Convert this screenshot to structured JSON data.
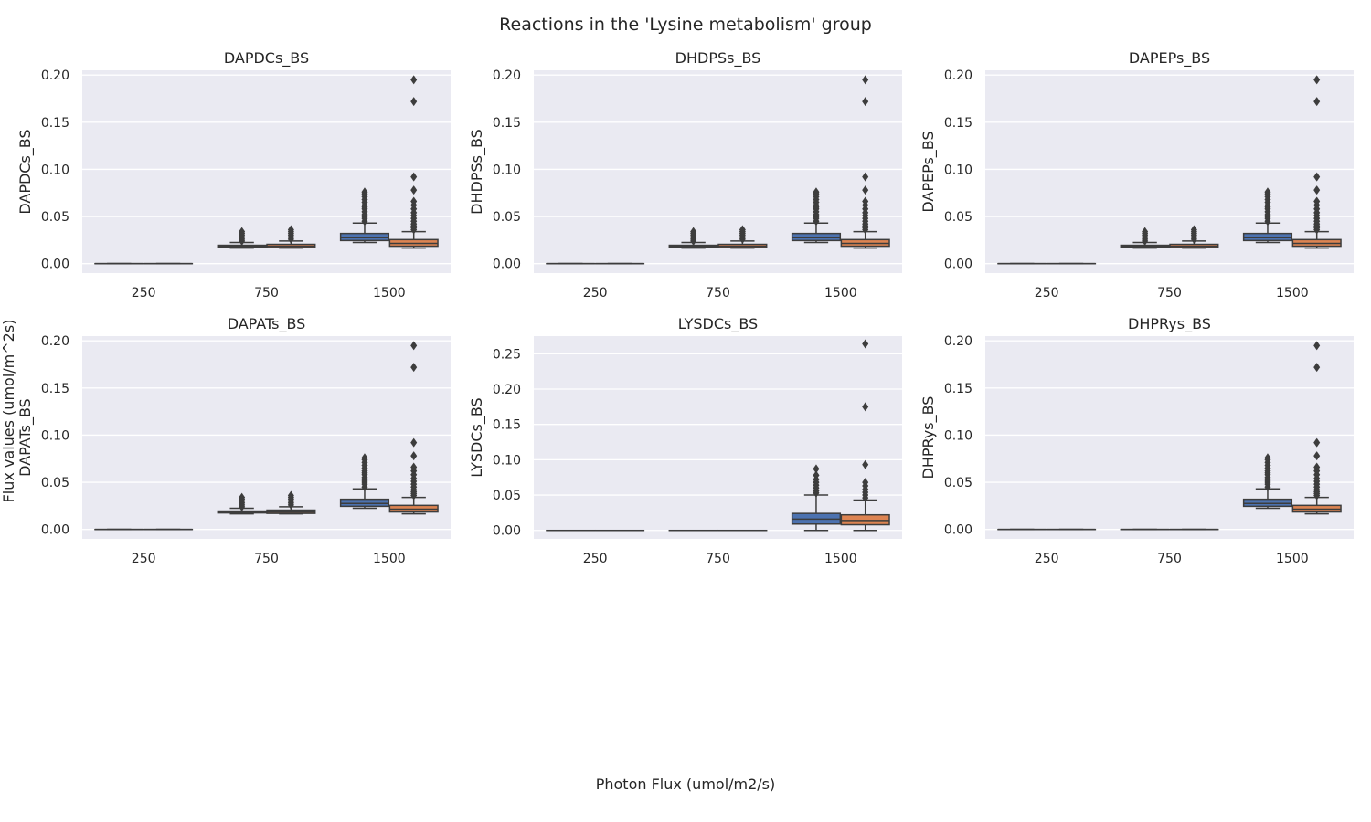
{
  "figure": {
    "suptitle": "Reactions in the 'Lysine metabolism' group",
    "supxlabel": "Photon Flux (umol/m2/s)",
    "supylabel": "Flux values (umol/m^2s)"
  },
  "colors": {
    "background": "#eaeaf2",
    "grid": "#ffffff",
    "box_edge": "#3d3d3d",
    "series_a": "#4c72b0",
    "series_b": "#dd8452"
  },
  "chart_data": [
    {
      "type": "box",
      "title": "DAPDCs_BS",
      "ylabel": "DAPDCs_BS",
      "categories": [
        "250",
        "750",
        "1500"
      ],
      "ylim": [
        -0.01,
        0.205
      ],
      "yticks": [
        0.0,
        0.05,
        0.1,
        0.15,
        0.2
      ],
      "ytick_labels": [
        "0.00",
        "0.05",
        "0.10",
        "0.15",
        "0.20"
      ],
      "grid": true,
      "series": [
        {
          "color": "#4c72b0",
          "boxes": [
            {
              "q1": 0.0,
              "median": 0.0,
              "q3": 0.0,
              "whislo": 0.0,
              "whishi": 0.0,
              "fliers": []
            },
            {
              "q1": 0.0175,
              "median": 0.0183,
              "q3": 0.0195,
              "whislo": 0.0165,
              "whishi": 0.0225,
              "fliers": [
                0.024,
                0.026,
                0.028,
                0.03,
                0.032,
                0.034
              ]
            },
            {
              "q1": 0.0245,
              "median": 0.0275,
              "q3": 0.032,
              "whislo": 0.0225,
              "whishi": 0.043,
              "fliers": [
                0.045,
                0.048,
                0.05,
                0.052,
                0.055,
                0.058,
                0.06,
                0.062,
                0.065,
                0.068,
                0.071,
                0.074,
                0.076
              ]
            }
          ]
        },
        {
          "color": "#dd8452",
          "boxes": [
            {
              "q1": 0.0,
              "median": 0.0,
              "q3": 0.0,
              "whislo": 0.0,
              "whishi": 0.0,
              "fliers": []
            },
            {
              "q1": 0.017,
              "median": 0.0185,
              "q3": 0.0205,
              "whislo": 0.0165,
              "whishi": 0.024,
              "fliers": [
                0.026,
                0.028,
                0.03,
                0.032,
                0.034,
                0.036
              ]
            },
            {
              "q1": 0.0185,
              "median": 0.0215,
              "q3": 0.0255,
              "whislo": 0.0165,
              "whishi": 0.034,
              "fliers": [
                0.036,
                0.038,
                0.04,
                0.042,
                0.045,
                0.048,
                0.051,
                0.054,
                0.058,
                0.062,
                0.066,
                0.078,
                0.092,
                0.172,
                0.195
              ]
            }
          ]
        }
      ]
    },
    {
      "type": "box",
      "title": "DHDPSs_BS",
      "ylabel": "DHDPSs_BS",
      "categories": [
        "250",
        "750",
        "1500"
      ],
      "ylim": [
        -0.01,
        0.205
      ],
      "yticks": [
        0.0,
        0.05,
        0.1,
        0.15,
        0.2
      ],
      "ytick_labels": [
        "0.00",
        "0.05",
        "0.10",
        "0.15",
        "0.20"
      ],
      "grid": true,
      "series": [
        {
          "color": "#4c72b0",
          "boxes": [
            {
              "q1": 0.0,
              "median": 0.0,
              "q3": 0.0,
              "whislo": 0.0,
              "whishi": 0.0,
              "fliers": []
            },
            {
              "q1": 0.0175,
              "median": 0.0183,
              "q3": 0.0195,
              "whislo": 0.0165,
              "whishi": 0.0225,
              "fliers": [
                0.024,
                0.026,
                0.028,
                0.03,
                0.032,
                0.034
              ]
            },
            {
              "q1": 0.0245,
              "median": 0.0275,
              "q3": 0.032,
              "whislo": 0.0225,
              "whishi": 0.043,
              "fliers": [
                0.045,
                0.048,
                0.05,
                0.052,
                0.055,
                0.058,
                0.06,
                0.062,
                0.065,
                0.068,
                0.071,
                0.074,
                0.076
              ]
            }
          ]
        },
        {
          "color": "#dd8452",
          "boxes": [
            {
              "q1": 0.0,
              "median": 0.0,
              "q3": 0.0,
              "whislo": 0.0,
              "whishi": 0.0,
              "fliers": []
            },
            {
              "q1": 0.017,
              "median": 0.0185,
              "q3": 0.0205,
              "whislo": 0.0165,
              "whishi": 0.024,
              "fliers": [
                0.026,
                0.028,
                0.03,
                0.032,
                0.034,
                0.036
              ]
            },
            {
              "q1": 0.0185,
              "median": 0.0215,
              "q3": 0.0255,
              "whislo": 0.0165,
              "whishi": 0.034,
              "fliers": [
                0.036,
                0.038,
                0.04,
                0.042,
                0.045,
                0.048,
                0.051,
                0.054,
                0.058,
                0.062,
                0.066,
                0.078,
                0.092,
                0.172,
                0.195
              ]
            }
          ]
        }
      ]
    },
    {
      "type": "box",
      "title": "DAPEPs_BS",
      "ylabel": "DAPEPs_BS",
      "categories": [
        "250",
        "750",
        "1500"
      ],
      "ylim": [
        -0.01,
        0.205
      ],
      "yticks": [
        0.0,
        0.05,
        0.1,
        0.15,
        0.2
      ],
      "ytick_labels": [
        "0.00",
        "0.05",
        "0.10",
        "0.15",
        "0.20"
      ],
      "grid": true,
      "series": [
        {
          "color": "#4c72b0",
          "boxes": [
            {
              "q1": 0.0,
              "median": 0.0,
              "q3": 0.0,
              "whislo": 0.0,
              "whishi": 0.0,
              "fliers": []
            },
            {
              "q1": 0.0175,
              "median": 0.0183,
              "q3": 0.0195,
              "whislo": 0.0165,
              "whishi": 0.0225,
              "fliers": [
                0.024,
                0.026,
                0.028,
                0.03,
                0.032,
                0.034
              ]
            },
            {
              "q1": 0.0245,
              "median": 0.0275,
              "q3": 0.032,
              "whislo": 0.0225,
              "whishi": 0.043,
              "fliers": [
                0.045,
                0.048,
                0.05,
                0.052,
                0.055,
                0.058,
                0.06,
                0.062,
                0.065,
                0.068,
                0.071,
                0.074,
                0.076
              ]
            }
          ]
        },
        {
          "color": "#dd8452",
          "boxes": [
            {
              "q1": 0.0,
              "median": 0.0,
              "q3": 0.0,
              "whislo": 0.0,
              "whishi": 0.0,
              "fliers": []
            },
            {
              "q1": 0.017,
              "median": 0.0185,
              "q3": 0.0205,
              "whislo": 0.0165,
              "whishi": 0.024,
              "fliers": [
                0.026,
                0.028,
                0.03,
                0.032,
                0.034,
                0.036
              ]
            },
            {
              "q1": 0.0185,
              "median": 0.0215,
              "q3": 0.0255,
              "whislo": 0.0165,
              "whishi": 0.034,
              "fliers": [
                0.036,
                0.038,
                0.04,
                0.042,
                0.045,
                0.048,
                0.051,
                0.054,
                0.058,
                0.062,
                0.066,
                0.078,
                0.092,
                0.172,
                0.195
              ]
            }
          ]
        }
      ]
    },
    {
      "type": "box",
      "title": "DAPATs_BS",
      "ylabel": "DAPATs_BS",
      "categories": [
        "250",
        "750",
        "1500"
      ],
      "ylim": [
        -0.01,
        0.205
      ],
      "yticks": [
        0.0,
        0.05,
        0.1,
        0.15,
        0.2
      ],
      "ytick_labels": [
        "0.00",
        "0.05",
        "0.10",
        "0.15",
        "0.20"
      ],
      "grid": true,
      "series": [
        {
          "color": "#4c72b0",
          "boxes": [
            {
              "q1": 0.0,
              "median": 0.0,
              "q3": 0.0,
              "whislo": 0.0,
              "whishi": 0.0,
              "fliers": []
            },
            {
              "q1": 0.0175,
              "median": 0.0183,
              "q3": 0.0195,
              "whislo": 0.0165,
              "whishi": 0.0225,
              "fliers": [
                0.024,
                0.026,
                0.028,
                0.03,
                0.032,
                0.034
              ]
            },
            {
              "q1": 0.0245,
              "median": 0.0275,
              "q3": 0.032,
              "whislo": 0.0225,
              "whishi": 0.043,
              "fliers": [
                0.045,
                0.048,
                0.05,
                0.052,
                0.055,
                0.058,
                0.06,
                0.062,
                0.065,
                0.068,
                0.071,
                0.074,
                0.076
              ]
            }
          ]
        },
        {
          "color": "#dd8452",
          "boxes": [
            {
              "q1": 0.0,
              "median": 0.0,
              "q3": 0.0,
              "whislo": 0.0,
              "whishi": 0.0,
              "fliers": []
            },
            {
              "q1": 0.017,
              "median": 0.0185,
              "q3": 0.0205,
              "whislo": 0.0165,
              "whishi": 0.024,
              "fliers": [
                0.026,
                0.028,
                0.03,
                0.032,
                0.034,
                0.036
              ]
            },
            {
              "q1": 0.0185,
              "median": 0.0215,
              "q3": 0.0255,
              "whislo": 0.0165,
              "whishi": 0.034,
              "fliers": [
                0.036,
                0.038,
                0.04,
                0.042,
                0.045,
                0.048,
                0.051,
                0.054,
                0.058,
                0.062,
                0.066,
                0.078,
                0.092,
                0.172,
                0.195
              ]
            }
          ]
        }
      ]
    },
    {
      "type": "box",
      "title": "LYSDCs_BS",
      "ylabel": "LYSDCs_BS",
      "categories": [
        "250",
        "750",
        "1500"
      ],
      "ylim": [
        -0.012,
        0.275
      ],
      "yticks": [
        0.0,
        0.05,
        0.1,
        0.15,
        0.2,
        0.25
      ],
      "ytick_labels": [
        "0.00",
        "0.05",
        "0.10",
        "0.15",
        "0.20",
        "0.25"
      ],
      "grid": true,
      "series": [
        {
          "color": "#4c72b0",
          "boxes": [
            {
              "q1": 0.0,
              "median": 0.0,
              "q3": 0.0,
              "whislo": 0.0,
              "whishi": 0.0,
              "fliers": []
            },
            {
              "q1": 0.0,
              "median": 0.0,
              "q3": 0.0,
              "whislo": 0.0,
              "whishi": 0.0,
              "fliers": []
            },
            {
              "q1": 0.009,
              "median": 0.016,
              "q3": 0.024,
              "whislo": 0.0,
              "whishi": 0.05,
              "fliers": [
                0.053,
                0.056,
                0.06,
                0.064,
                0.068,
                0.072,
                0.078,
                0.087
              ]
            }
          ]
        },
        {
          "color": "#dd8452",
          "boxes": [
            {
              "q1": 0.0,
              "median": 0.0,
              "q3": 0.0,
              "whislo": 0.0,
              "whishi": 0.0,
              "fliers": []
            },
            {
              "q1": 0.0,
              "median": 0.0,
              "q3": 0.0,
              "whislo": 0.0,
              "whishi": 0.0,
              "fliers": []
            },
            {
              "q1": 0.008,
              "median": 0.014,
              "q3": 0.022,
              "whislo": 0.0,
              "whishi": 0.043,
              "fliers": [
                0.046,
                0.05,
                0.054,
                0.058,
                0.063,
                0.068,
                0.093,
                0.175,
                0.264
              ]
            }
          ]
        }
      ]
    },
    {
      "type": "box",
      "title": "DHPRys_BS",
      "ylabel": "DHPRys_BS",
      "categories": [
        "250",
        "750",
        "1500"
      ],
      "ylim": [
        -0.01,
        0.205
      ],
      "yticks": [
        0.0,
        0.05,
        0.1,
        0.15,
        0.2
      ],
      "ytick_labels": [
        "0.00",
        "0.05",
        "0.10",
        "0.15",
        "0.20"
      ],
      "grid": true,
      "series": [
        {
          "color": "#4c72b0",
          "boxes": [
            {
              "q1": 0.0,
              "median": 0.0,
              "q3": 0.0,
              "whislo": 0.0,
              "whishi": 0.0,
              "fliers": []
            },
            {
              "q1": 0.0,
              "median": 0.0,
              "q3": 0.0,
              "whislo": 0.0,
              "whishi": 0.0,
              "fliers": []
            },
            {
              "q1": 0.0245,
              "median": 0.0275,
              "q3": 0.032,
              "whislo": 0.0225,
              "whishi": 0.043,
              "fliers": [
                0.045,
                0.048,
                0.05,
                0.052,
                0.055,
                0.058,
                0.06,
                0.062,
                0.065,
                0.068,
                0.071,
                0.074,
                0.076
              ]
            }
          ]
        },
        {
          "color": "#dd8452",
          "boxes": [
            {
              "q1": 0.0,
              "median": 0.0,
              "q3": 0.0,
              "whislo": 0.0,
              "whishi": 0.0,
              "fliers": []
            },
            {
              "q1": 0.0,
              "median": 0.0,
              "q3": 0.0,
              "whislo": 0.0,
              "whishi": 0.0,
              "fliers": []
            },
            {
              "q1": 0.0185,
              "median": 0.0215,
              "q3": 0.0255,
              "whislo": 0.0165,
              "whishi": 0.034,
              "fliers": [
                0.036,
                0.038,
                0.04,
                0.042,
                0.045,
                0.048,
                0.051,
                0.054,
                0.058,
                0.062,
                0.066,
                0.078,
                0.092,
                0.172,
                0.195
              ]
            }
          ]
        }
      ]
    }
  ]
}
